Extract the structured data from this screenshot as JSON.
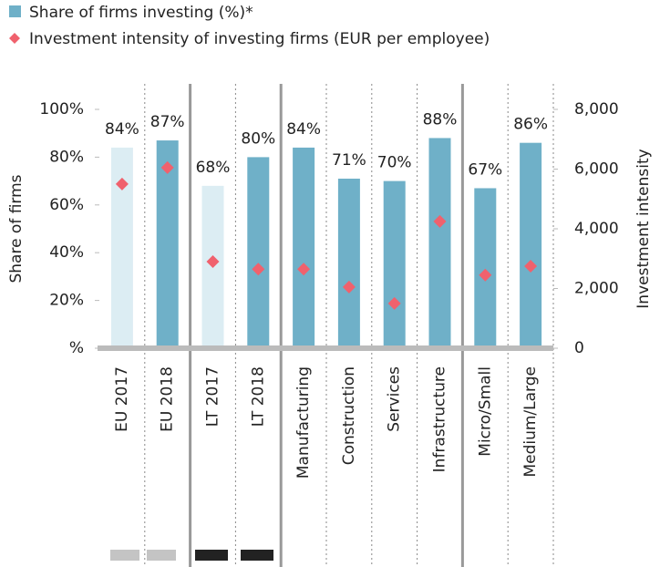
{
  "chart_data": {
    "type": "bar",
    "categories": [
      "EU 2017",
      "EU 2018",
      "LT 2017",
      "LT 2018",
      "Manufacturing",
      "Construction",
      "Services",
      "Infrastructure",
      "Micro/Small",
      "Medium/Large"
    ],
    "series": [
      {
        "name": "Share of firms investing (%)*",
        "color": "#6fb0c8",
        "colors": [
          "#dcedf3",
          "#6fb0c8",
          "#dcedf3",
          "#6fb0c8",
          "#6fb0c8",
          "#6fb0c8",
          "#6fb0c8",
          "#6fb0c8",
          "#6fb0c8",
          "#6fb0c8"
        ],
        "values": [
          84,
          87,
          68,
          80,
          84,
          71,
          70,
          88,
          67,
          86
        ],
        "value_labels": [
          "84%",
          "87%",
          "68%",
          "80%",
          "84%",
          "71%",
          "70%",
          "88%",
          "67%",
          "86%"
        ]
      },
      {
        "name": "Investment intensity of investing firms (EUR per employee)",
        "color": "#f0616d",
        "type": "scatter",
        "axis": "y2",
        "values": [
          5500,
          6050,
          2900,
          2650,
          2650,
          2050,
          1500,
          4250,
          2450,
          2750
        ]
      }
    ],
    "ylabel": "Share of firms",
    "y2label": "Investment intensity",
    "ylim": [
      0,
      100
    ],
    "yticks": [
      {
        "value": 0,
        "label": "%"
      },
      {
        "value": 20,
        "label": "20%"
      },
      {
        "value": 40,
        "label": "40%"
      },
      {
        "value": 60,
        "label": "60%"
      },
      {
        "value": 80,
        "label": "80%"
      },
      {
        "value": 100,
        "label": "100%"
      }
    ],
    "y2lim": [
      0,
      8000
    ],
    "y2ticks": [
      0,
      {
        "value": 2000,
        "label": "2,000"
      },
      {
        "value": 4000,
        "label": "4,000"
      },
      {
        "value": 6000,
        "label": "6,000"
      },
      {
        "value": 8000,
        "label": "8,000"
      }
    ]
  }
}
